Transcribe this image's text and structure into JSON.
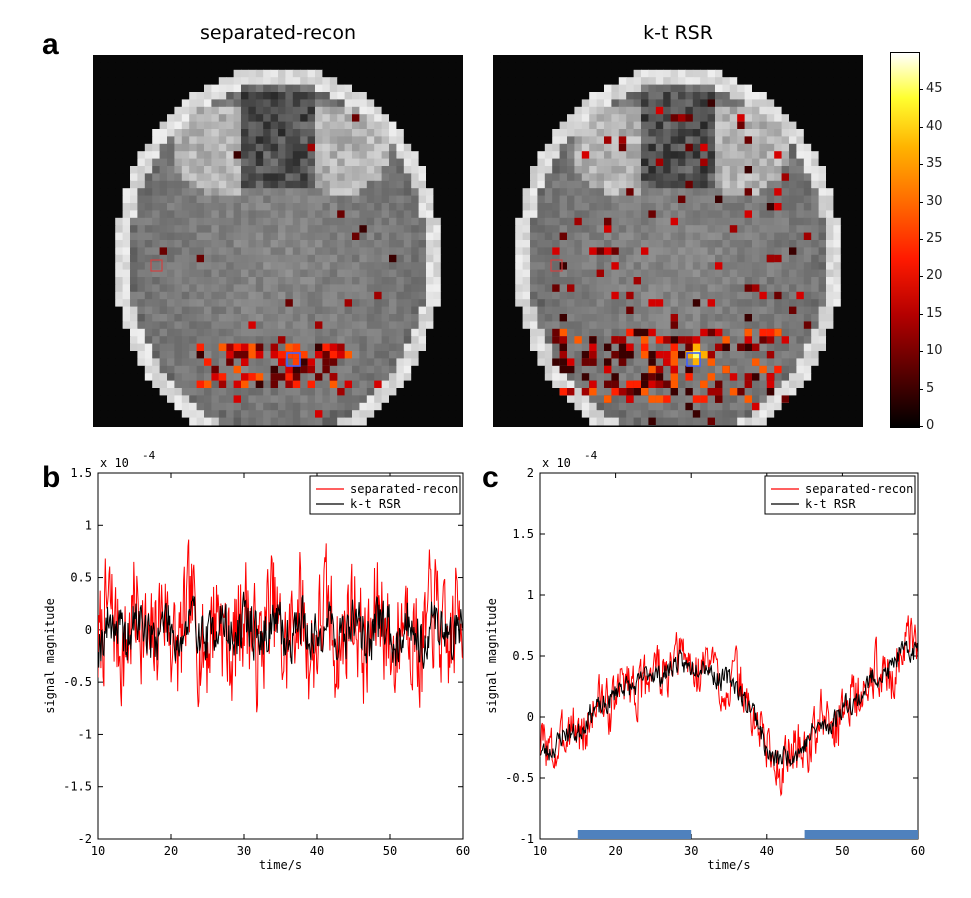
{
  "panel_labels": {
    "a": "a",
    "b": "b",
    "c": "c"
  },
  "images": {
    "left_title": "separated-recon",
    "right_title": "k-t RSR",
    "seeds": {
      "left": 11,
      "right": 29
    }
  },
  "colorbar": {
    "ticks": [
      "0",
      "5",
      "10",
      "15",
      "20",
      "25",
      "30",
      "35",
      "40",
      "45"
    ],
    "max": 50
  },
  "colors": {
    "red_series": "#ff0000",
    "black_series": "#000000",
    "stimulus_bar": "#4f81bd"
  },
  "chart_data": [
    {
      "id": "b",
      "type": "line",
      "title": "",
      "xlabel": "time/s",
      "ylabel": "signal magnitude",
      "exponent_label": "x 10",
      "exponent_power": "-4",
      "xlim": [
        10,
        60
      ],
      "ylim": [
        -2,
        1.5
      ],
      "xticks": [
        "10",
        "20",
        "30",
        "40",
        "50",
        "60"
      ],
      "yticks": [
        "-2",
        "-1.5",
        "-1",
        "-0.5",
        "0",
        "0.5",
        "1",
        "1.5"
      ],
      "legend": [
        "separated-recon",
        "k-t RSR"
      ],
      "legend_position": "top-right",
      "series": [
        {
          "name": "separated-recon",
          "color": "#ff0000",
          "x_start": 10,
          "x_end": 60,
          "points": 500,
          "baseline": [
            [
              10,
              0
            ],
            [
              60,
              0
            ]
          ],
          "noise": 0.62,
          "seed": 7
        },
        {
          "name": "k-t RSR",
          "color": "#000000",
          "x_start": 10,
          "x_end": 60,
          "points": 500,
          "baseline": [
            [
              10,
              0
            ],
            [
              60,
              0
            ]
          ],
          "noise": 0.28,
          "seed": 19
        }
      ],
      "stimulus_blocks": []
    },
    {
      "id": "c",
      "type": "line",
      "title": "",
      "xlabel": "time/s",
      "ylabel": "signal magnitude",
      "exponent_label": "x 10",
      "exponent_power": "-4",
      "xlim": [
        10,
        60
      ],
      "ylim": [
        -1,
        2
      ],
      "xticks": [
        "10",
        "20",
        "30",
        "40",
        "50",
        "60"
      ],
      "yticks": [
        "-1",
        "-0.5",
        "0",
        "0.5",
        "1",
        "1.5",
        "2"
      ],
      "legend": [
        "separated-recon",
        "k-t RSR"
      ],
      "legend_position": "top-right",
      "series": [
        {
          "name": "separated-recon",
          "color": "#ff0000",
          "x_start": 10,
          "x_end": 60,
          "points": 500,
          "baseline": [
            [
              10,
              -0.3
            ],
            [
              15,
              -0.1
            ],
            [
              20,
              0.2
            ],
            [
              25,
              0.35
            ],
            [
              30,
              0.45
            ],
            [
              35,
              0.3
            ],
            [
              38,
              0.1
            ],
            [
              40,
              -0.3
            ],
            [
              43,
              -0.35
            ],
            [
              45,
              -0.2
            ],
            [
              50,
              0.05
            ],
            [
              55,
              0.35
            ],
            [
              60,
              0.6
            ]
          ],
          "noise": 0.24,
          "seed": 3
        },
        {
          "name": "k-t RSR",
          "color": "#000000",
          "x_start": 10,
          "x_end": 60,
          "points": 500,
          "baseline": [
            [
              10,
              -0.3
            ],
            [
              15,
              -0.1
            ],
            [
              20,
              0.2
            ],
            [
              25,
              0.35
            ],
            [
              30,
              0.45
            ],
            [
              35,
              0.3
            ],
            [
              38,
              0.1
            ],
            [
              40,
              -0.3
            ],
            [
              43,
              -0.35
            ],
            [
              45,
              -0.2
            ],
            [
              50,
              0.05
            ],
            [
              55,
              0.35
            ],
            [
              60,
              0.6
            ]
          ],
          "noise": 0.1,
          "seed": 23
        }
      ],
      "stimulus_blocks": [
        [
          15,
          30
        ],
        [
          45,
          60
        ]
      ]
    }
  ]
}
